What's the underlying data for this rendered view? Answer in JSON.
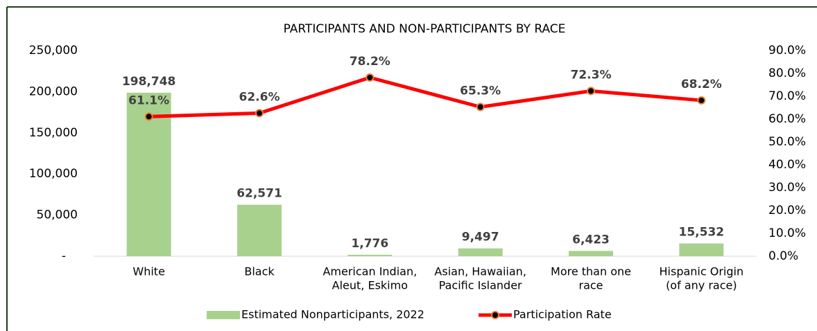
{
  "chart_data": {
    "type": "bar_line",
    "title": "PARTICIPANTS AND NON-PARTICIPANTS BY RACE",
    "categories": [
      [
        "White"
      ],
      [
        "Black"
      ],
      [
        "American Indian,",
        "Aleut, Eskimo"
      ],
      [
        "Asian, Hawaiian,",
        "Pacific Islander"
      ],
      [
        "More than one",
        "race"
      ],
      [
        "Hispanic Origin",
        "(of any race)"
      ]
    ],
    "series": [
      {
        "name": "Estimated Nonparticipants, 2022",
        "type": "bar",
        "color": "#a9d18e",
        "values": [
          198748,
          62571,
          1776,
          9497,
          6423,
          15532
        ],
        "value_labels": [
          "198,748",
          "62,571",
          "1,776",
          "9,497",
          "6,423",
          "15,532"
        ]
      },
      {
        "name": "Participation Rate",
        "type": "line",
        "axis": "y2",
        "color": "#ff0000",
        "marker_color": "#000000",
        "marker_edge": "#ed7d31",
        "values": [
          61.1,
          62.6,
          78.2,
          65.3,
          72.3,
          68.2
        ],
        "value_labels": [
          "61.1%",
          "62.6%",
          "78.2%",
          "65.3%",
          "72.3%",
          "68.2%"
        ]
      }
    ],
    "ylim": [
      0,
      250000
    ],
    "yticks": [
      {
        "value": 0,
        "label": "-"
      },
      {
        "value": 50000,
        "label": "50,000"
      },
      {
        "value": 100000,
        "label": "100,000"
      },
      {
        "value": 150000,
        "label": "150,000"
      },
      {
        "value": 200000,
        "label": "200,000"
      },
      {
        "value": 250000,
        "label": "250,000"
      }
    ],
    "y2lim": [
      0,
      90
    ],
    "y2ticks": [
      {
        "value": 0,
        "label": "0.0%"
      },
      {
        "value": 10,
        "label": "10.0%"
      },
      {
        "value": 20,
        "label": "20.0%"
      },
      {
        "value": 30,
        "label": "30.0%"
      },
      {
        "value": 40,
        "label": "40.0%"
      },
      {
        "value": 50,
        "label": "50.0%"
      },
      {
        "value": 60,
        "label": "60.0%"
      },
      {
        "value": 70,
        "label": "70.0%"
      },
      {
        "value": 80,
        "label": "80.0%"
      },
      {
        "value": 90,
        "label": "90.0%"
      }
    ],
    "legend": "bottom"
  }
}
